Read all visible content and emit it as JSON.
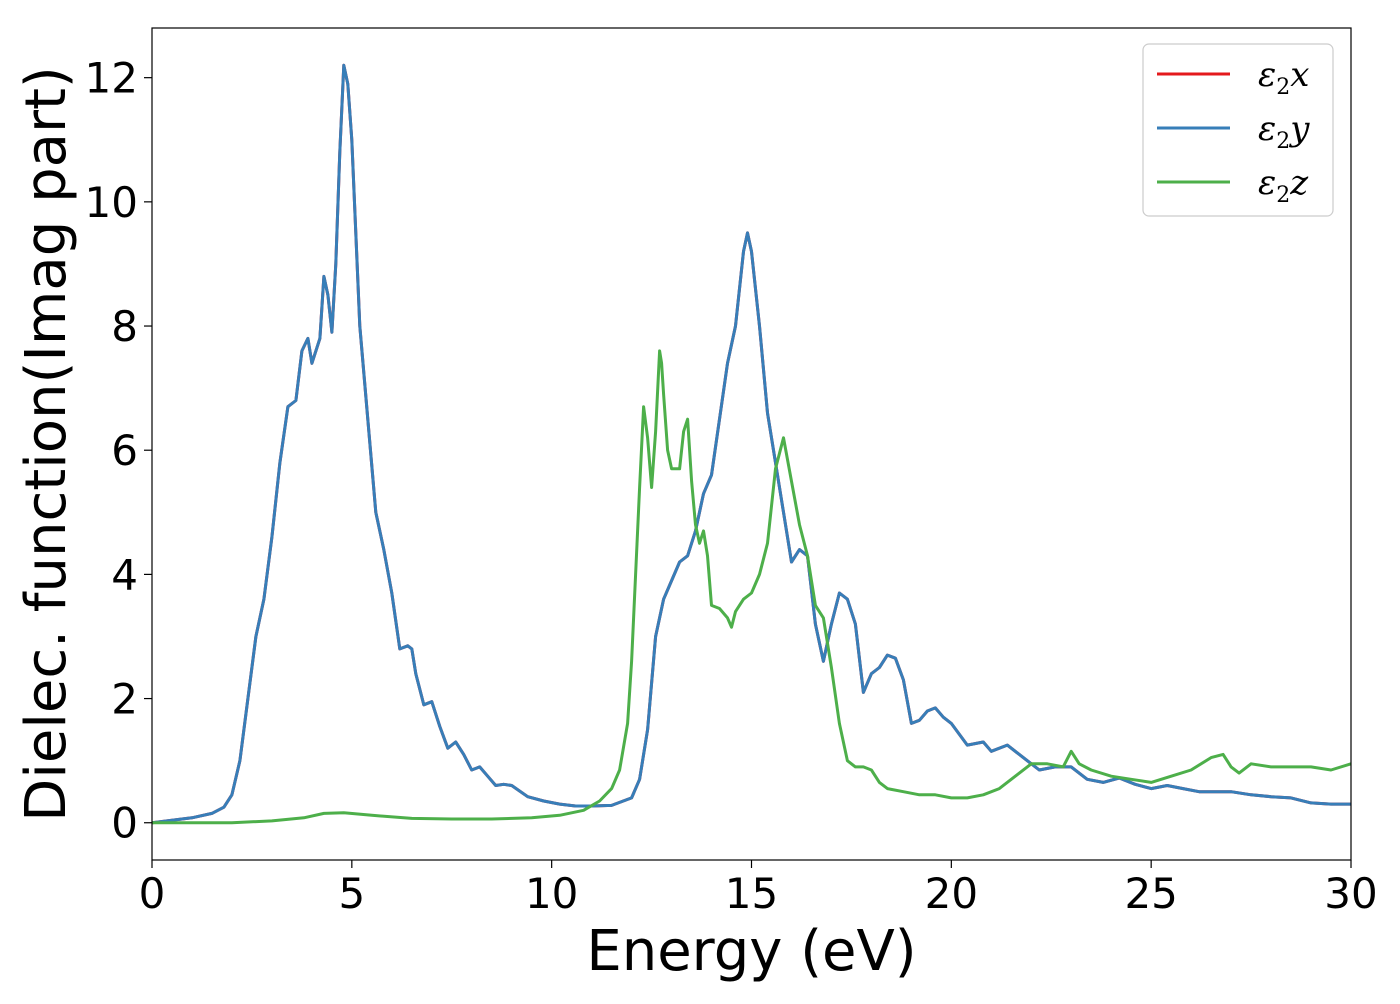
{
  "chart_data": {
    "type": "line",
    "title": "",
    "xlabel": "Energy (eV)",
    "ylabel": "Dielec. function(Imag part)",
    "xlim": [
      0,
      30
    ],
    "ylim": [
      -0.6,
      12.8
    ],
    "xticks": [
      0,
      5,
      10,
      15,
      20,
      25,
      30
    ],
    "yticks": [
      0,
      2,
      4,
      6,
      8,
      10,
      12
    ],
    "xtick_labels": [
      "0",
      "5",
      "10",
      "15",
      "20",
      "25",
      "30"
    ],
    "ytick_labels": [
      "0",
      "2",
      "4",
      "6",
      "8",
      "10",
      "12"
    ],
    "grid": false,
    "legend_position": "top-right",
    "series": [
      {
        "name": "ε2x",
        "name_base": "ε",
        "name_sub": "2",
        "name_var": "x",
        "color": "#e41a1c",
        "same_as": "ε2y"
      },
      {
        "name": "ε2y",
        "name_base": "ε",
        "name_sub": "2",
        "name_var": "y",
        "color": "#377eb8",
        "x": [
          0,
          0.5,
          1.0,
          1.5,
          1.8,
          2.0,
          2.2,
          2.4,
          2.6,
          2.8,
          3.0,
          3.2,
          3.4,
          3.6,
          3.75,
          3.9,
          4.0,
          4.2,
          4.3,
          4.4,
          4.5,
          4.6,
          4.7,
          4.8,
          4.9,
          5.0,
          5.1,
          5.2,
          5.4,
          5.6,
          5.8,
          6.0,
          6.2,
          6.4,
          6.5,
          6.6,
          6.8,
          7.0,
          7.2,
          7.4,
          7.6,
          7.8,
          8.0,
          8.2,
          8.4,
          8.6,
          8.8,
          9.0,
          9.4,
          9.8,
          10.2,
          10.6,
          11.0,
          11.5,
          12.0,
          12.2,
          12.4,
          12.6,
          12.8,
          13.0,
          13.2,
          13.4,
          13.6,
          13.8,
          14.0,
          14.2,
          14.4,
          14.6,
          14.8,
          14.9,
          15.0,
          15.2,
          15.4,
          15.6,
          15.8,
          16.0,
          16.2,
          16.4,
          16.6,
          16.8,
          17.0,
          17.2,
          17.4,
          17.6,
          17.8,
          18.0,
          18.2,
          18.4,
          18.6,
          18.8,
          19.0,
          19.2,
          19.4,
          19.6,
          19.8,
          20.0,
          20.4,
          20.8,
          21.0,
          21.4,
          21.8,
          22.2,
          22.6,
          23.0,
          23.4,
          23.8,
          24.2,
          24.6,
          25.0,
          25.4,
          25.8,
          26.2,
          26.6,
          27.0,
          27.5,
          28.0,
          28.5,
          29.0,
          29.5,
          30.0
        ],
        "y": [
          0.0,
          0.04,
          0.08,
          0.15,
          0.25,
          0.45,
          1.0,
          2.0,
          3.0,
          3.6,
          4.6,
          5.8,
          6.7,
          6.8,
          7.6,
          7.8,
          7.4,
          7.8,
          8.8,
          8.5,
          7.9,
          9.0,
          10.8,
          12.2,
          11.9,
          11.0,
          9.5,
          8.0,
          6.5,
          5.0,
          4.4,
          3.7,
          2.8,
          2.85,
          2.8,
          2.4,
          1.9,
          1.95,
          1.55,
          1.2,
          1.3,
          1.1,
          0.85,
          0.9,
          0.75,
          0.6,
          0.62,
          0.6,
          0.42,
          0.35,
          0.3,
          0.27,
          0.27,
          0.28,
          0.4,
          0.7,
          1.5,
          3.0,
          3.6,
          3.9,
          4.2,
          4.3,
          4.7,
          5.3,
          5.6,
          6.5,
          7.4,
          8.0,
          9.2,
          9.5,
          9.2,
          8.0,
          6.6,
          5.8,
          5.0,
          4.2,
          4.4,
          4.3,
          3.2,
          2.6,
          3.2,
          3.7,
          3.6,
          3.2,
          2.1,
          2.4,
          2.5,
          2.7,
          2.65,
          2.3,
          1.6,
          1.65,
          1.8,
          1.85,
          1.7,
          1.6,
          1.25,
          1.3,
          1.15,
          1.25,
          1.05,
          0.85,
          0.9,
          0.9,
          0.7,
          0.65,
          0.72,
          0.62,
          0.55,
          0.6,
          0.55,
          0.5,
          0.5,
          0.5,
          0.45,
          0.42,
          0.4,
          0.32,
          0.3,
          0.3
        ]
      },
      {
        "name": "ε2z",
        "name_base": "ε",
        "name_sub": "2",
        "name_var": "z",
        "color": "#4daf4a",
        "x": [
          0,
          1.0,
          2.0,
          3.0,
          3.8,
          4.3,
          4.8,
          5.5,
          6.5,
          7.5,
          8.5,
          9.5,
          10.2,
          10.8,
          11.2,
          11.5,
          11.7,
          11.9,
          12.0,
          12.1,
          12.2,
          12.3,
          12.4,
          12.5,
          12.6,
          12.7,
          12.75,
          12.8,
          12.9,
          13.0,
          13.2,
          13.3,
          13.4,
          13.5,
          13.6,
          13.7,
          13.8,
          13.9,
          14.0,
          14.2,
          14.4,
          14.5,
          14.6,
          14.8,
          15.0,
          15.2,
          15.4,
          15.6,
          15.8,
          16.0,
          16.2,
          16.4,
          16.6,
          16.8,
          17.0,
          17.2,
          17.4,
          17.6,
          17.8,
          18.0,
          18.2,
          18.4,
          18.8,
          19.2,
          19.6,
          20.0,
          20.4,
          20.8,
          21.2,
          21.6,
          22.0,
          22.4,
          22.8,
          23.0,
          23.2,
          23.5,
          24.0,
          24.5,
          25.0,
          25.5,
          26.0,
          26.5,
          26.8,
          27.0,
          27.2,
          27.5,
          28.0,
          28.5,
          29.0,
          29.5,
          30.0
        ],
        "y": [
          0.0,
          0.0,
          0.0,
          0.03,
          0.08,
          0.15,
          0.16,
          0.12,
          0.07,
          0.06,
          0.06,
          0.08,
          0.12,
          0.2,
          0.35,
          0.55,
          0.85,
          1.6,
          2.6,
          4.0,
          5.4,
          6.7,
          6.2,
          5.4,
          6.3,
          7.6,
          7.4,
          6.9,
          6.0,
          5.7,
          5.7,
          6.3,
          6.5,
          5.5,
          4.8,
          4.5,
          4.7,
          4.3,
          3.5,
          3.45,
          3.3,
          3.15,
          3.4,
          3.6,
          3.7,
          4.0,
          4.5,
          5.7,
          6.2,
          5.5,
          4.8,
          4.3,
          3.5,
          3.3,
          2.5,
          1.6,
          1.0,
          0.9,
          0.9,
          0.85,
          0.65,
          0.55,
          0.5,
          0.45,
          0.45,
          0.4,
          0.4,
          0.45,
          0.55,
          0.75,
          0.95,
          0.95,
          0.9,
          1.15,
          0.95,
          0.85,
          0.75,
          0.7,
          0.65,
          0.75,
          0.85,
          1.05,
          1.1,
          0.9,
          0.8,
          0.95,
          0.9,
          0.9,
          0.9,
          0.85,
          0.95
        ]
      }
    ]
  }
}
